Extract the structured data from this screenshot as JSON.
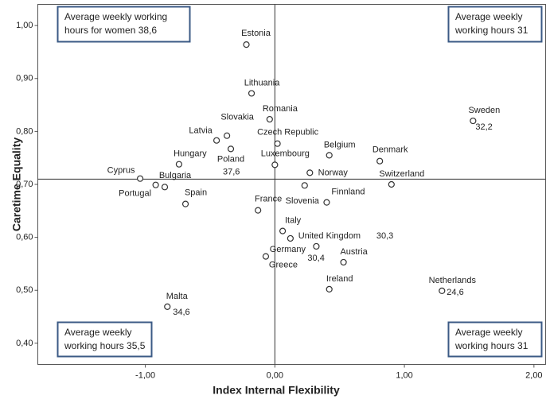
{
  "chart_data": {
    "type": "scatter",
    "xlabel": "Index Internal Flexibility",
    "ylabel": "Caretime Equality",
    "xlim": [
      -1.83,
      2.09
    ],
    "ylim": [
      0.36,
      1.04
    ],
    "xticks": [
      {
        "value": -1,
        "label": "-1,00"
      },
      {
        "value": 0,
        "label": "0,00"
      },
      {
        "value": 1,
        "label": "1,00"
      },
      {
        "value": 2,
        "label": "2,00"
      }
    ],
    "yticks": [
      {
        "value": 0.4,
        "label": "0,40"
      },
      {
        "value": 0.5,
        "label": "0,50"
      },
      {
        "value": 0.6,
        "label": "0,60"
      },
      {
        "value": 0.7,
        "label": "0,70"
      },
      {
        "value": 0.8,
        "label": "0,80"
      },
      {
        "value": 0.9,
        "label": "0,90"
      },
      {
        "value": 1,
        "label": "1,00"
      }
    ],
    "reference_lines": {
      "x": 0,
      "y": 0.71
    },
    "color": "#333333",
    "labels": [
      "Estonia",
      "Lithuania",
      "Romania",
      "Slovakia",
      "Latvia",
      "Poland",
      "Czech Republic",
      "Luxembourg",
      "Belgium",
      "Denmark",
      "Sweden",
      "Hungary",
      "Cyprus",
      "Portugal",
      "Bulgaria",
      "Spain",
      "Norway",
      "Slovenia",
      "Finnland",
      "Switzerland",
      "France",
      "Italy",
      "United Kingdom",
      "Germany",
      "Greece",
      "Austria",
      "Ireland",
      "Netherlands",
      "Malta"
    ],
    "x": [
      -0.22,
      -0.18,
      -0.04,
      -0.37,
      -0.45,
      -0.34,
      0.02,
      0.0,
      0.42,
      0.81,
      1.53,
      -0.74,
      -1.04,
      -0.92,
      -0.85,
      -0.69,
      0.27,
      0.23,
      0.4,
      0.9,
      -0.13,
      0.06,
      0.12,
      0.32,
      -0.07,
      0.53,
      0.42,
      1.29,
      -0.83
    ],
    "values": [
      0.964,
      0.872,
      0.823,
      0.792,
      0.783,
      0.767,
      0.777,
      0.737,
      0.755,
      0.744,
      0.82,
      0.738,
      0.711,
      0.699,
      0.695,
      0.663,
      0.722,
      0.698,
      0.666,
      0.7,
      0.651,
      0.612,
      0.598,
      0.583,
      0.564,
      0.553,
      0.502,
      0.499,
      0.469
    ],
    "notes": [
      null,
      null,
      null,
      null,
      null,
      "37,6",
      null,
      null,
      null,
      null,
      "32,2",
      null,
      null,
      null,
      null,
      null,
      null,
      null,
      null,
      null,
      null,
      null,
      "30,3",
      "30,4",
      null,
      null,
      null,
      "24,6",
      "34,6"
    ],
    "annotations": [
      {
        "lines": [
          "Average weekly working",
          "hours for women 38,6"
        ]
      },
      {
        "lines": [
          "Average weekly",
          "working hours 31"
        ]
      },
      {
        "lines": [
          "Average weekly",
          "working hours 35,5"
        ]
      },
      {
        "lines": [
          "Average weekly",
          "working hours 31"
        ]
      }
    ]
  }
}
